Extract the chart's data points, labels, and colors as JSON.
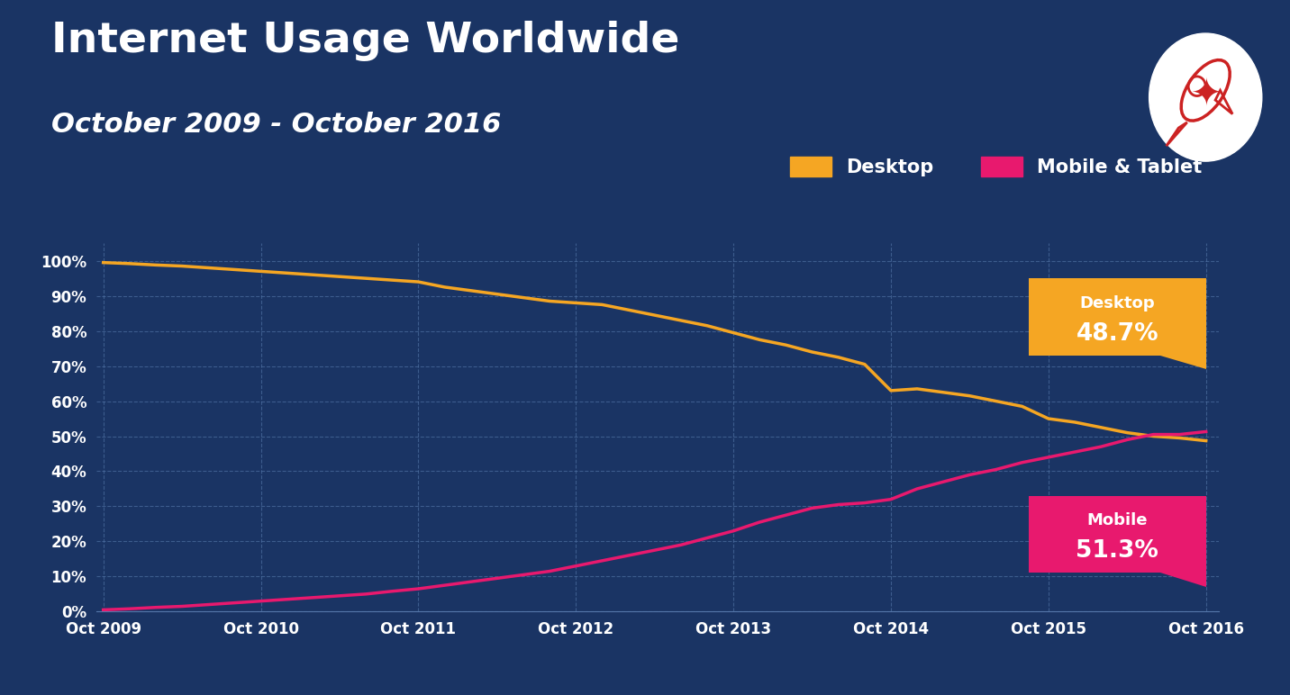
{
  "title": "Internet Usage Worldwide",
  "subtitle": "October 2009 - October 2016",
  "background_color": "#1a3464",
  "plot_bg_color": "#1a3464",
  "text_color": "#ffffff",
  "desktop_color": "#f5a623",
  "mobile_color": "#e8196e",
  "x_labels": [
    "Oct 2009",
    "Oct 2010",
    "Oct 2011",
    "Oct 2012",
    "Oct 2013",
    "Oct 2014",
    "Oct 2015",
    "Oct 2016"
  ],
  "x_positions": [
    0,
    12,
    24,
    36,
    48,
    60,
    72,
    84
  ],
  "desktop_data": {
    "x": [
      0,
      2,
      4,
      6,
      8,
      10,
      12,
      14,
      16,
      18,
      20,
      22,
      24,
      26,
      28,
      30,
      32,
      34,
      36,
      38,
      40,
      42,
      44,
      46,
      48,
      50,
      52,
      54,
      56,
      58,
      60,
      62,
      64,
      66,
      68,
      70,
      72,
      74,
      76,
      78,
      80,
      82,
      84
    ],
    "y": [
      99.5,
      99.2,
      98.8,
      98.5,
      98.0,
      97.5,
      97.0,
      96.5,
      96.0,
      95.5,
      95.0,
      94.5,
      94.0,
      92.5,
      91.5,
      90.5,
      89.5,
      88.5,
      88.0,
      87.5,
      86.0,
      84.5,
      83.0,
      81.5,
      79.5,
      77.5,
      76.0,
      74.0,
      72.5,
      70.5,
      63.0,
      63.5,
      62.5,
      61.5,
      60.0,
      58.5,
      55.0,
      54.0,
      52.5,
      51.0,
      50.0,
      49.5,
      48.7
    ]
  },
  "mobile_data": {
    "x": [
      0,
      2,
      4,
      6,
      8,
      10,
      12,
      14,
      16,
      18,
      20,
      22,
      24,
      26,
      28,
      30,
      32,
      34,
      36,
      38,
      40,
      42,
      44,
      46,
      48,
      50,
      52,
      54,
      56,
      58,
      60,
      62,
      64,
      66,
      68,
      70,
      72,
      74,
      76,
      78,
      80,
      82,
      84
    ],
    "y": [
      0.5,
      0.8,
      1.2,
      1.5,
      2.0,
      2.5,
      3.0,
      3.5,
      4.0,
      4.5,
      5.0,
      5.8,
      6.5,
      7.5,
      8.5,
      9.5,
      10.5,
      11.5,
      13.0,
      14.5,
      16.0,
      17.5,
      19.0,
      21.0,
      23.0,
      25.5,
      27.5,
      29.5,
      30.5,
      31.0,
      32.0,
      35.0,
      37.0,
      39.0,
      40.5,
      42.5,
      44.0,
      45.5,
      47.0,
      49.0,
      50.5,
      50.5,
      51.3
    ]
  },
  "ylim": [
    0,
    105
  ],
  "yticks": [
    0,
    10,
    20,
    30,
    40,
    50,
    60,
    70,
    80,
    90,
    100
  ],
  "ytick_labels": [
    "0%",
    "10%",
    "20%",
    "30%",
    "40%",
    "50%",
    "60%",
    "70%",
    "80%",
    "90%",
    "100%"
  ],
  "desktop_label": "Desktop",
  "mobile_label": "Mobile & Tablet",
  "annotation_desktop_label": "Desktop",
  "annotation_desktop_value": "48.7%",
  "annotation_mobile_label": "Mobile",
  "annotation_mobile_value": "51.3%",
  "annotation_desktop_color": "#f5a623",
  "annotation_mobile_color": "#e8196e"
}
